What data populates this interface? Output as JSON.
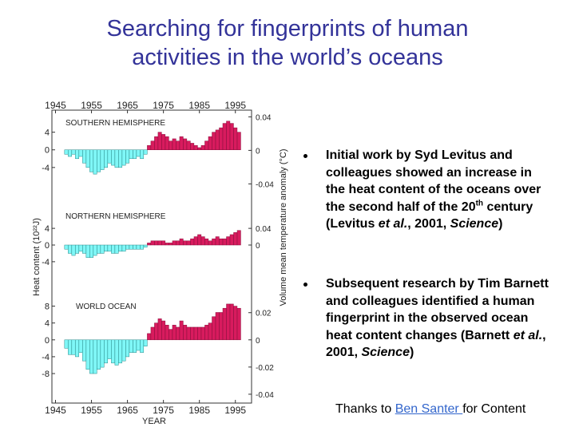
{
  "title": {
    "line1": "Searching for fingerprints of human",
    "line2": "activities in the world’s oceans"
  },
  "figure": {
    "type": "bar",
    "x_label": "YEAR",
    "y_label": "Heat content (10²²J)",
    "y2_label": "Volume mean temperature anomaly (°C)",
    "xlim": [
      1944,
      1999.5
    ],
    "xticks": [
      1945,
      1955,
      1965,
      1975,
      1985,
      1995
    ],
    "positive_color": "#d81b5e",
    "negative_color": "#7ff7f7",
    "x": [
      1948,
      1949,
      1950,
      1951,
      1952,
      1953,
      1954,
      1955,
      1956,
      1957,
      1958,
      1959,
      1960,
      1961,
      1962,
      1963,
      1964,
      1965,
      1966,
      1967,
      1968,
      1969,
      1970,
      1971,
      1972,
      1973,
      1974,
      1975,
      1976,
      1977,
      1978,
      1979,
      1980,
      1981,
      1982,
      1983,
      1984,
      1985,
      1986,
      1987,
      1988,
      1989,
      1990,
      1991,
      1992,
      1993,
      1994,
      1995,
      1996
    ],
    "panels": [
      {
        "name": "SOUTHERN HEMISPHERE",
        "ylim": [
          -10,
          9
        ],
        "yticks": [
          4,
          0,
          -4
        ],
        "y2lim": [
          -0.052,
          0.048
        ],
        "y2ticks": [
          0.04,
          0,
          -0.04
        ],
        "values": [
          -1,
          -1.5,
          -1,
          -2,
          -1.5,
          -3,
          -4,
          -5,
          -5.5,
          -5,
          -4.5,
          -4,
          -3,
          -3.5,
          -4,
          -4,
          -3.5,
          -3,
          -2,
          -2,
          -1.5,
          -2,
          -1,
          1,
          2,
          3,
          4,
          3.5,
          3,
          2,
          2.5,
          2,
          3,
          2.5,
          2,
          1.5,
          1,
          0.5,
          1,
          2,
          3,
          4,
          4.5,
          5,
          6,
          6.5,
          6,
          5,
          4
        ]
      },
      {
        "name": "NORTHERN HEMISPHERE",
        "ylim": [
          -9,
          9
        ],
        "yticks": [
          4,
          0,
          -4
        ],
        "y2lim": [
          -0.09,
          0.09
        ],
        "y2ticks": [
          0.04,
          0
        ],
        "values": [
          -1,
          -2,
          -2.5,
          -2,
          -1.5,
          -2,
          -3,
          -3,
          -2.5,
          -2,
          -2,
          -1.5,
          -1.5,
          -2,
          -2,
          -1.5,
          -1.5,
          -1,
          -1,
          -1,
          -1,
          -1,
          -0.5,
          0.5,
          1,
          1,
          1,
          1,
          0.5,
          0.5,
          1,
          1,
          1.5,
          1,
          1,
          1.5,
          2,
          2.5,
          2,
          1.5,
          1,
          1.5,
          2,
          1.5,
          1.5,
          2,
          2.5,
          3,
          3.5
        ]
      },
      {
        "name": "WORLD OCEAN",
        "ylim": [
          -15,
          10
        ],
        "yticks": [
          8,
          4,
          0,
          -4,
          -8
        ],
        "y2lim": [
          -0.0465,
          0.031
        ],
        "y2ticks": [
          0.02,
          0,
          -0.02,
          -0.04
        ],
        "values": [
          -2,
          -3.5,
          -3.5,
          -4,
          -3,
          -5,
          -7,
          -8,
          -8,
          -7,
          -6.5,
          -5.5,
          -4.5,
          -5.5,
          -6,
          -5.5,
          -5,
          -4,
          -3,
          -3,
          -2.5,
          -3,
          -1.5,
          1.5,
          3,
          4,
          5,
          4.5,
          3.5,
          2.5,
          3.5,
          3,
          4.5,
          3.5,
          3,
          3,
          3,
          3,
          3,
          3.5,
          4,
          5.5,
          6.5,
          6.5,
          7.5,
          8.5,
          8.5,
          8,
          7.5
        ]
      }
    ]
  },
  "bullets": [
    [
      "Initial work by Syd Levitus and colleagues showed an increase in the heat content of the oceans over the second half of the 20",
      "th",
      " century (Levitus ",
      "et al.",
      ", 2001, ",
      "Science",
      ")"
    ],
    [
      "Subsequent research by Tim Barnett and colleagues identified a human fingerprint in the observed ocean heat content changes (Barnett ",
      "et al.",
      ", 2001, ",
      "Science",
      ")"
    ]
  ],
  "credit": [
    "Thanks to ",
    "Ben Santer ",
    "for Content"
  ]
}
